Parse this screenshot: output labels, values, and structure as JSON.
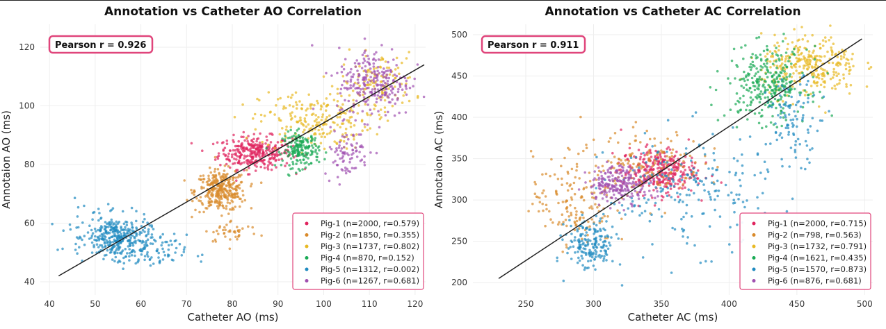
{
  "chart_data": [
    {
      "type": "scatter",
      "title": "Annotation vs Catheter AO Correlation",
      "xlabel": "Catheter AO (ms)",
      "ylabel": "Annotaion AO (ms)",
      "xlim": [
        38,
        122.3
      ],
      "ylim": [
        35.5,
        127.8
      ],
      "xticks": [
        40,
        50,
        60,
        70,
        80,
        90,
        100,
        110,
        120
      ],
      "yticks": [
        40,
        60,
        80,
        100,
        120
      ],
      "grid": true,
      "annotation": "Pearson r = 0.926",
      "regression_line": {
        "x": [
          42,
          122
        ],
        "y": [
          42,
          114
        ]
      },
      "legend_placement": "bottom-right",
      "series": [
        {
          "name": "Pig-1 (n=2000, r=0.579)",
          "color": "#e0245e",
          "clusters": [
            [
              85,
              84,
              4,
              2.8,
              320
            ]
          ]
        },
        {
          "name": "Pig-2 (n=1850, r=0.355)",
          "color": "#d98a2b",
          "clusters": [
            [
              77.5,
              71,
              2.8,
              3.5,
              320
            ],
            [
              80,
              57,
              3,
              2,
              40
            ]
          ]
        },
        {
          "name": "Pig-3 (n=1737, r=0.802)",
          "color": "#e8b923",
          "clusters": [
            [
              98,
              95,
              6,
              5,
              220
            ],
            [
              112,
              108,
              4,
              5,
              120
            ]
          ]
        },
        {
          "name": "Pig-4 (n=870, r=0.152)",
          "color": "#1aaa55",
          "clusters": [
            [
              95,
              85,
              2,
              3,
              180
            ]
          ]
        },
        {
          "name": "Pig-5 (n=1312, r=0.002)",
          "color": "#1f8ac0",
          "clusters": [
            [
              55,
              55,
              3.5,
              3.5,
              300
            ],
            [
              62,
              50,
              4,
              3,
              80
            ],
            [
              50,
              58,
              5,
              5,
              50
            ]
          ]
        },
        {
          "name": "Pig-6 (n=1267, r=0.681)",
          "color": "#a050b0",
          "clusters": [
            [
              111,
              108,
              4,
              6,
              250
            ],
            [
              105,
              84,
              2.5,
              4,
              80
            ]
          ]
        }
      ]
    },
    {
      "type": "scatter",
      "title": "Annotation vs Catheter AC Correlation",
      "xlabel": "Catheter AC (ms)",
      "ylabel": "Annotaion AC (ms)",
      "xlim": [
        211,
        506
      ],
      "ylim": [
        185,
        512.6
      ],
      "xticks": [
        250,
        300,
        350,
        400,
        450,
        500
      ],
      "yticks": [
        200,
        250,
        300,
        350,
        400,
        450,
        500
      ],
      "grid": true,
      "annotation": "Pearson r = 0.911",
      "regression_line": {
        "x": [
          230,
          498
        ],
        "y": [
          205,
          495
        ]
      },
      "legend_placement": "bottom-right",
      "series": [
        {
          "name": "Pig-1 (n=2000, r=0.715)",
          "color": "#e0245e",
          "clusters": [
            [
              348,
              335,
              14,
              14,
              320
            ]
          ]
        },
        {
          "name": "Pig-2 (n=798, r=0.563)",
          "color": "#d98a2b",
          "clusters": [
            [
              285,
              300,
              15,
              28,
              150
            ],
            [
              340,
              345,
              20,
              20,
              150
            ]
          ]
        },
        {
          "name": "Pig-3 (n=1732, r=0.791)",
          "color": "#e8b923",
          "clusters": [
            [
              460,
              462,
              18,
              18,
              300
            ]
          ]
        },
        {
          "name": "Pig-4 (n=1621, r=0.435)",
          "color": "#1aaa55",
          "clusters": [
            [
              428,
              440,
              15,
              22,
              300
            ]
          ]
        },
        {
          "name": "Pig-5 (n=1570, r=0.873)",
          "color": "#1f8ac0",
          "clusters": [
            [
              298,
              245,
              9,
              16,
              180
            ],
            [
              370,
              310,
              30,
              35,
              200
            ],
            [
              448,
              395,
              10,
              25,
              100
            ]
          ]
        },
        {
          "name": "Pig-6 (n=876, r=0.681)",
          "color": "#a050b0",
          "clusters": [
            [
              320,
              320,
              12,
              11,
              220
            ]
          ]
        }
      ]
    }
  ],
  "colors": {
    "annotation_border": "#e0457b",
    "regression_line": "#222222"
  }
}
